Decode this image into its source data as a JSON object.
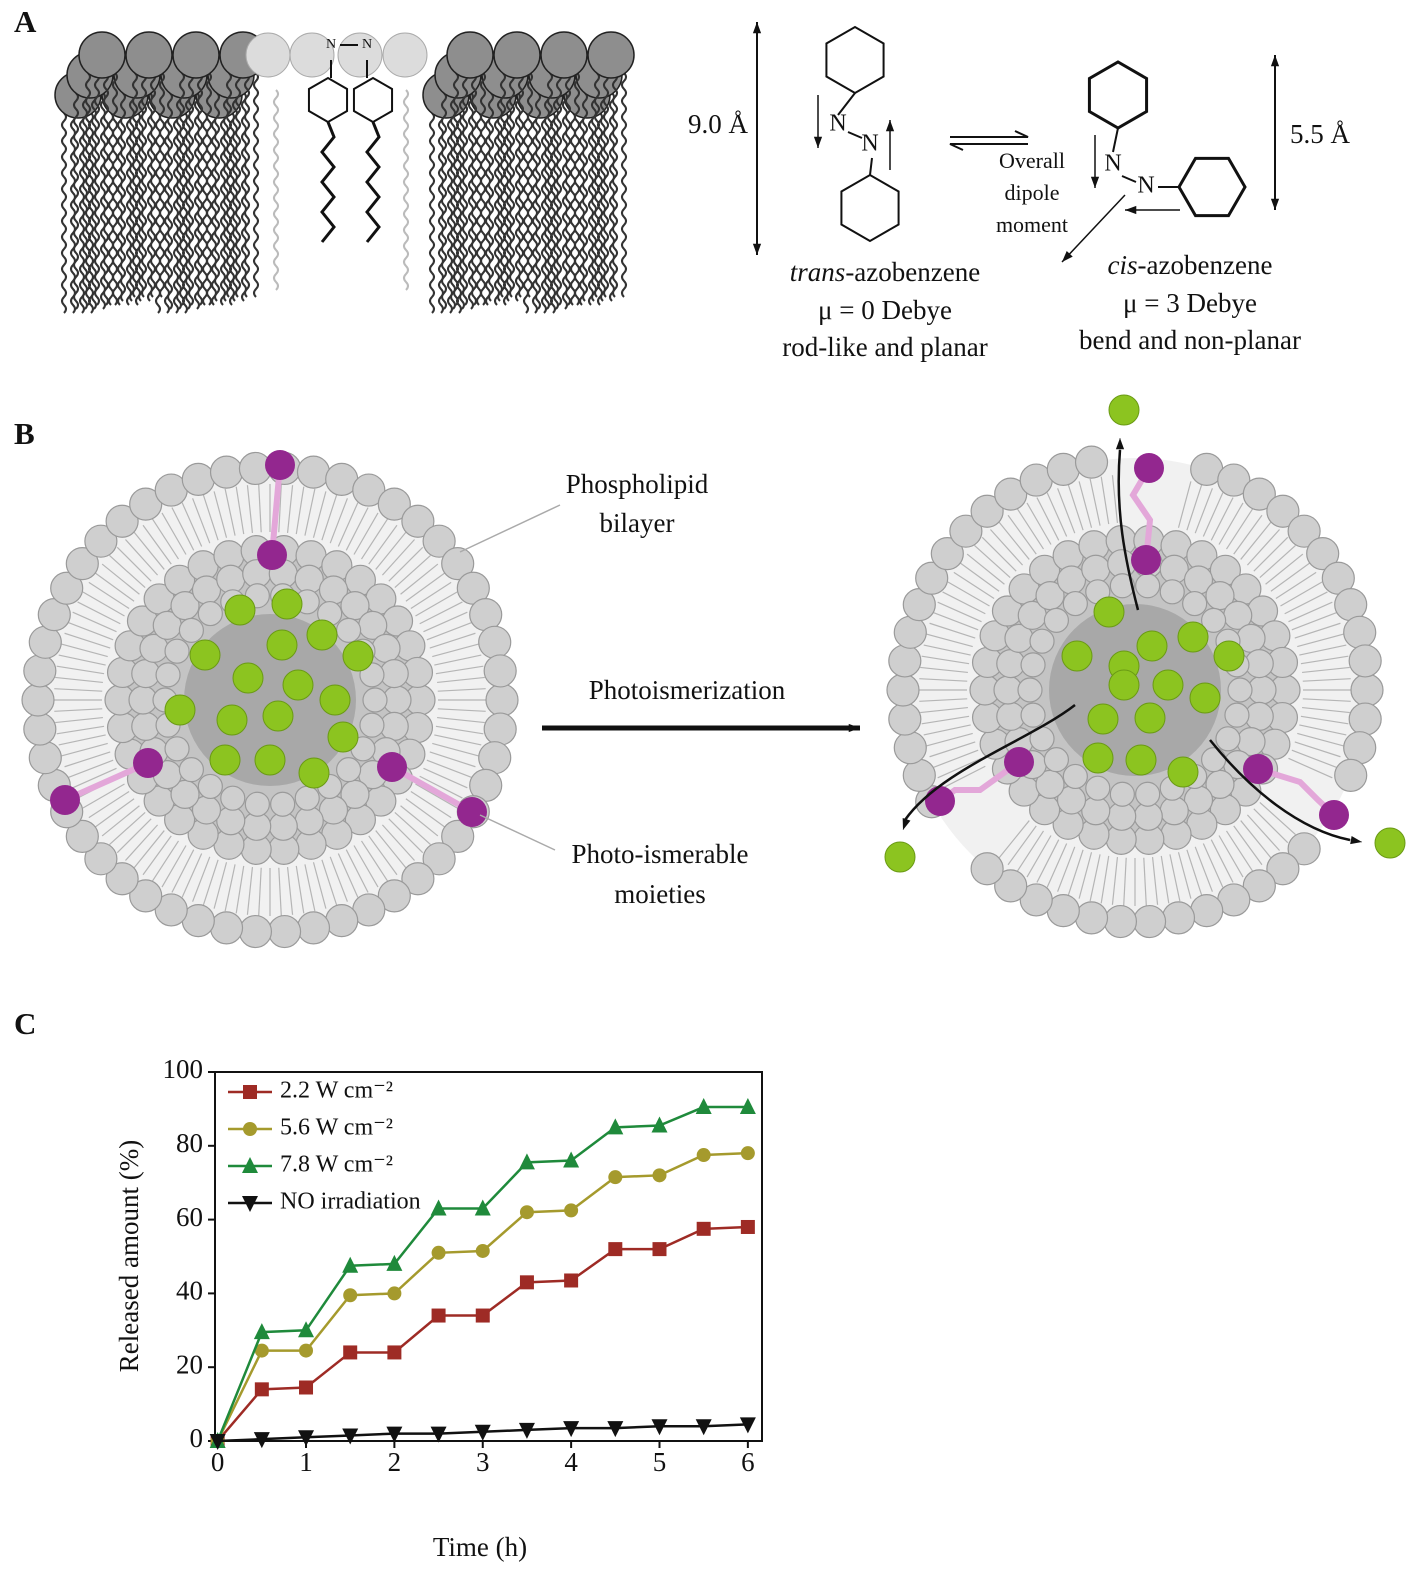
{
  "panel_labels": [
    "A",
    "B",
    "C"
  ],
  "panel_a": {
    "membrane_atoms": [
      "N",
      "N"
    ],
    "trans_length": "9.0 Å",
    "cis_length": "5.5 Å",
    "trans_atoms": [
      "N",
      "N"
    ],
    "cis_atoms": [
      "N",
      "N"
    ],
    "dipole_note": [
      "Overall",
      "dipole",
      "moment"
    ],
    "trans": {
      "prefix": "trans",
      "name": "-azobenzene",
      "dipole": "μ = 0 Debye",
      "shape": "rod-like and planar"
    },
    "cis": {
      "prefix": "cis",
      "name": "-azobenzene",
      "dipole": "μ = 3 Debye",
      "shape": "bend and non-planar"
    }
  },
  "panel_b": {
    "bilayer": [
      "Phospholipid",
      "bilayer"
    ],
    "process": "Photoismerization",
    "moieties": [
      "Photo-ismerable",
      "moieties"
    ]
  },
  "chart_data": {
    "type": "line",
    "x_label": "Time (h)",
    "y_label": "Released amount (%)",
    "x": [
      0,
      0.5,
      1,
      1.5,
      2,
      2.5,
      3,
      3.5,
      4,
      4.5,
      5,
      5.5,
      6
    ],
    "series": [
      {
        "name": "2.2 W cm⁻²",
        "color": "#9e2b25",
        "marker": "square",
        "values": [
          0,
          14,
          14.5,
          24,
          24,
          34,
          34,
          43,
          43.5,
          52,
          52,
          57.5,
          58
        ]
      },
      {
        "name": "5.6 W cm⁻²",
        "color": "#a59a2d",
        "marker": "circle",
        "values": [
          0,
          24.5,
          24.5,
          39.5,
          40,
          51,
          51.5,
          62,
          62.5,
          71.5,
          72,
          77.5,
          78
        ]
      },
      {
        "name": "7.8 W cm⁻²",
        "color": "#1f8a3b",
        "marker": "triangle-up",
        "values": [
          0,
          29.5,
          30,
          47.5,
          48,
          63,
          63,
          75.5,
          76,
          85,
          85.5,
          90.5,
          90.5
        ]
      },
      {
        "name": "NO irradiation",
        "color": "#111111",
        "marker": "triangle-down",
        "values": [
          0,
          0.5,
          1,
          1.5,
          2,
          2,
          2.5,
          3,
          3.5,
          3.5,
          4,
          4,
          4.5
        ]
      }
    ],
    "xlim": [
      -0.03,
      6.16
    ],
    "ylim": [
      0,
      100
    ],
    "xticks": [
      0,
      1,
      2,
      3,
      4,
      5,
      6
    ],
    "yticks": [
      0,
      20,
      40,
      60,
      80,
      100
    ],
    "grid": false,
    "legend": "upper left"
  }
}
